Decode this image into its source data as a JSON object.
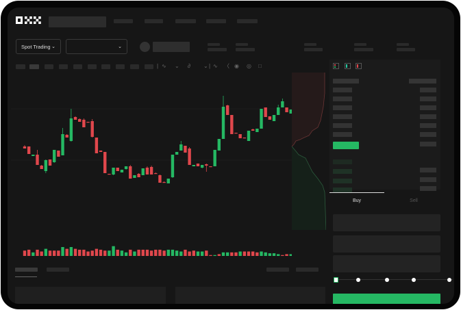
{
  "brand": {
    "logo": "OKX"
  },
  "market": {
    "mode_label": "Spot Trading",
    "pair_select_icon": "chevron-down-icon"
  },
  "toolbar_icons": [
    "indicator-icon",
    "compare-icon",
    "fx-icon",
    "line-tool-icon",
    "ruler-icon",
    "camera-icon",
    "settings-icon",
    "fullscreen-icon"
  ],
  "orderbook": {
    "view_icons": [
      "both-sides-icon",
      "bids-only-icon",
      "asks-only-icon"
    ]
  },
  "order_form": {
    "tabs": [
      {
        "label": "Buy",
        "active": true
      },
      {
        "label": "Sell",
        "active": false
      }
    ],
    "slider_percent": 0
  },
  "colors": {
    "up": "#25b863",
    "down": "#e0474c",
    "background": "#161616",
    "panel": "#1b1b1b"
  },
  "chart_data": {
    "type": "candlestick",
    "ohlc": [
      [
        97,
        99,
        94,
        94
      ],
      [
        97,
        97,
        86,
        86
      ],
      [
        83,
        85,
        83,
        85
      ],
      [
        85,
        92,
        70,
        70
      ],
      [
        69,
        70,
        64,
        64
      ],
      [
        61,
        78,
        58,
        77
      ],
      [
        78,
        78,
        69,
        69
      ],
      [
        74,
        92,
        73,
        92
      ],
      [
        91,
        91,
        82,
        82
      ],
      [
        84,
        124,
        84,
        115
      ],
      [
        114,
        115,
        110,
        110
      ],
      [
        105,
        152,
        104,
        138
      ],
      [
        140,
        141,
        136,
        136
      ],
      [
        137,
        138,
        133,
        133
      ],
      [
        136,
        138,
        125,
        125
      ],
      [
        133,
        133,
        132,
        132
      ],
      [
        134,
        137,
        110,
        111
      ],
      [
        110,
        110,
        87,
        87
      ],
      [
        91,
        91,
        89,
        89
      ],
      [
        89,
        89,
        58,
        58
      ],
      [
        57,
        57,
        56,
        56
      ],
      [
        56,
        66,
        55,
        66
      ],
      [
        66,
        66,
        61,
        61
      ],
      [
        59,
        63,
        59,
        63
      ],
      [
        64,
        68,
        63,
        68
      ],
      [
        68,
        70,
        50,
        50
      ],
      [
        51,
        55,
        51,
        55
      ],
      [
        57,
        58,
        52,
        52
      ],
      [
        55,
        65,
        55,
        65
      ],
      [
        66,
        68,
        56,
        56
      ],
      [
        67,
        69,
        56,
        56
      ],
      [
        58,
        59,
        57,
        57
      ],
      [
        55,
        56,
        44,
        44
      ],
      [
        45,
        46,
        44,
        44
      ],
      [
        43,
        50,
        43,
        50
      ],
      [
        52,
        85,
        51,
        85
      ],
      [
        85,
        89,
        85,
        89
      ],
      [
        91,
        105,
        91,
        100
      ],
      [
        98,
        98,
        88,
        88
      ],
      [
        94,
        96,
        70,
        70
      ],
      [
        68,
        70,
        68,
        70
      ],
      [
        72,
        72,
        68,
        68
      ],
      [
        66,
        70,
        65,
        70
      ],
      [
        71,
        72,
        60,
        69
      ],
      [
        68,
        68,
        67,
        67
      ],
      [
        68,
        92,
        68,
        92
      ],
      [
        91,
        108,
        91,
        108
      ],
      [
        108,
        171,
        108,
        155
      ],
      [
        157,
        158,
        143,
        143
      ],
      [
        143,
        143,
        115,
        115
      ],
      [
        117,
        117,
        116,
        116
      ],
      [
        115,
        115,
        109,
        109
      ],
      [
        110,
        110,
        109,
        109
      ],
      [
        105,
        120,
        105,
        120
      ],
      [
        122,
        123,
        120,
        120
      ],
      [
        118,
        123,
        118,
        123
      ],
      [
        123,
        152,
        123,
        152
      ],
      [
        154,
        154,
        140,
        140
      ],
      [
        141,
        141,
        136,
        136
      ],
      [
        134,
        143,
        134,
        143
      ],
      [
        143,
        158,
        143,
        154
      ],
      [
        154,
        167,
        154,
        163
      ],
      [
        154,
        154,
        147,
        147
      ],
      [
        145,
        151,
        145,
        151
      ]
    ],
    "volume": [
      {
        "v": 6,
        "up": false
      },
      {
        "v": 7,
        "up": false
      },
      {
        "v": 4,
        "up": true
      },
      {
        "v": 7,
        "up": false
      },
      {
        "v": 5,
        "up": false
      },
      {
        "v": 8,
        "up": true
      },
      {
        "v": 6,
        "up": false
      },
      {
        "v": 6,
        "up": false
      },
      {
        "v": 6,
        "up": false
      },
      {
        "v": 10,
        "up": true
      },
      {
        "v": 8,
        "up": false
      },
      {
        "v": 10,
        "up": true
      },
      {
        "v": 8,
        "up": false
      },
      {
        "v": 7,
        "up": false
      },
      {
        "v": 7,
        "up": false
      },
      {
        "v": 5,
        "up": false
      },
      {
        "v": 6,
        "up": false
      },
      {
        "v": 8,
        "up": false
      },
      {
        "v": 7,
        "up": false
      },
      {
        "v": 6,
        "up": false
      },
      {
        "v": 6,
        "up": true
      },
      {
        "v": 11,
        "up": true
      },
      {
        "v": 7,
        "up": false
      },
      {
        "v": 6,
        "up": true
      },
      {
        "v": 4,
        "up": true
      },
      {
        "v": 7,
        "up": false
      },
      {
        "v": 5,
        "up": true
      },
      {
        "v": 7,
        "up": false
      },
      {
        "v": 7,
        "up": false
      },
      {
        "v": 7,
        "up": false
      },
      {
        "v": 6,
        "up": false
      },
      {
        "v": 7,
        "up": false
      },
      {
        "v": 7,
        "up": false
      },
      {
        "v": 6,
        "up": false
      },
      {
        "v": 7,
        "up": true
      },
      {
        "v": 7,
        "up": true
      },
      {
        "v": 6,
        "up": true
      },
      {
        "v": 5,
        "up": true
      },
      {
        "v": 7,
        "up": false
      },
      {
        "v": 5,
        "up": false
      },
      {
        "v": 6,
        "up": false
      },
      {
        "v": 5,
        "up": true
      },
      {
        "v": 5,
        "up": true
      },
      {
        "v": 6,
        "up": false
      },
      {
        "v": 1,
        "up": false
      },
      {
        "v": 1,
        "up": true
      },
      {
        "v": 2,
        "up": false
      },
      {
        "v": 4,
        "up": true
      },
      {
        "v": 4,
        "up": true
      },
      {
        "v": 4,
        "up": false
      },
      {
        "v": 4,
        "up": false
      },
      {
        "v": 5,
        "up": true
      },
      {
        "v": 5,
        "up": false
      },
      {
        "v": 5,
        "up": false
      },
      {
        "v": 5,
        "up": false
      },
      {
        "v": 4,
        "up": false
      },
      {
        "v": 5,
        "up": true
      },
      {
        "v": 4,
        "up": true
      },
      {
        "v": 3,
        "up": true
      },
      {
        "v": 3,
        "up": true
      },
      {
        "v": 2,
        "up": true
      },
      {
        "v": 1,
        "up": false
      },
      {
        "v": 2,
        "up": false
      },
      {
        "v": 2,
        "up": true
      }
    ]
  }
}
